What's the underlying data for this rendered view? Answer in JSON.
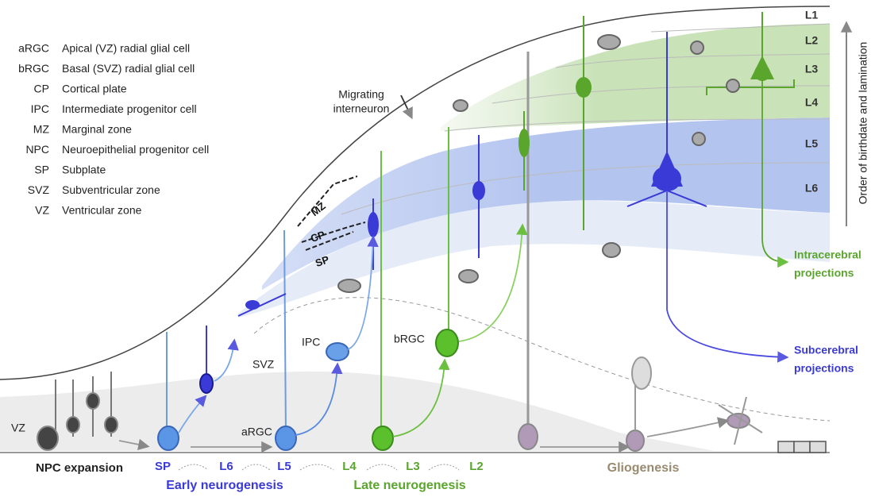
{
  "legend": [
    {
      "abbr": "aRGC",
      "term": "Apical (VZ) radial glial cell"
    },
    {
      "abbr": "bRGC",
      "term": "Basal (SVZ) radial glial cell"
    },
    {
      "abbr": "CP",
      "term": "Cortical plate"
    },
    {
      "abbr": "IPC",
      "term": "Intermediate progenitor cell"
    },
    {
      "abbr": "MZ",
      "term": "Marginal zone"
    },
    {
      "abbr": "NPC",
      "term": "Neuroepithelial progenitor cell"
    },
    {
      "abbr": "SP",
      "term": "Subplate"
    },
    {
      "abbr": "SVZ",
      "term": "Subventricular zone"
    },
    {
      "abbr": "VZ",
      "term": "Ventricular zone"
    }
  ],
  "layers": [
    "L1",
    "L2",
    "L3",
    "L4",
    "L5",
    "L6"
  ],
  "axis_label": "Order of birthdate and lamination",
  "labels": {
    "migrating_interneuron": [
      "Migrating",
      "interneuron"
    ],
    "zones": [
      "MZ",
      "CP",
      "SP"
    ],
    "svz": "SVZ",
    "ipc": "IPC",
    "brgc": "bRGC",
    "argc": "aRGC",
    "vz": "VZ"
  },
  "projections": {
    "intracerebral": [
      "Intracerebral",
      "projections"
    ],
    "subcerebral": [
      "Subcerebral",
      "projections"
    ]
  },
  "timeline": {
    "npc_expansion": "NPC expansion",
    "stages": [
      "SP",
      "L6",
      "L5",
      "L4",
      "L3",
      "L2"
    ],
    "phases": [
      "Early neurogenesis",
      "Late neurogenesis",
      "Gliogenesis"
    ]
  }
}
